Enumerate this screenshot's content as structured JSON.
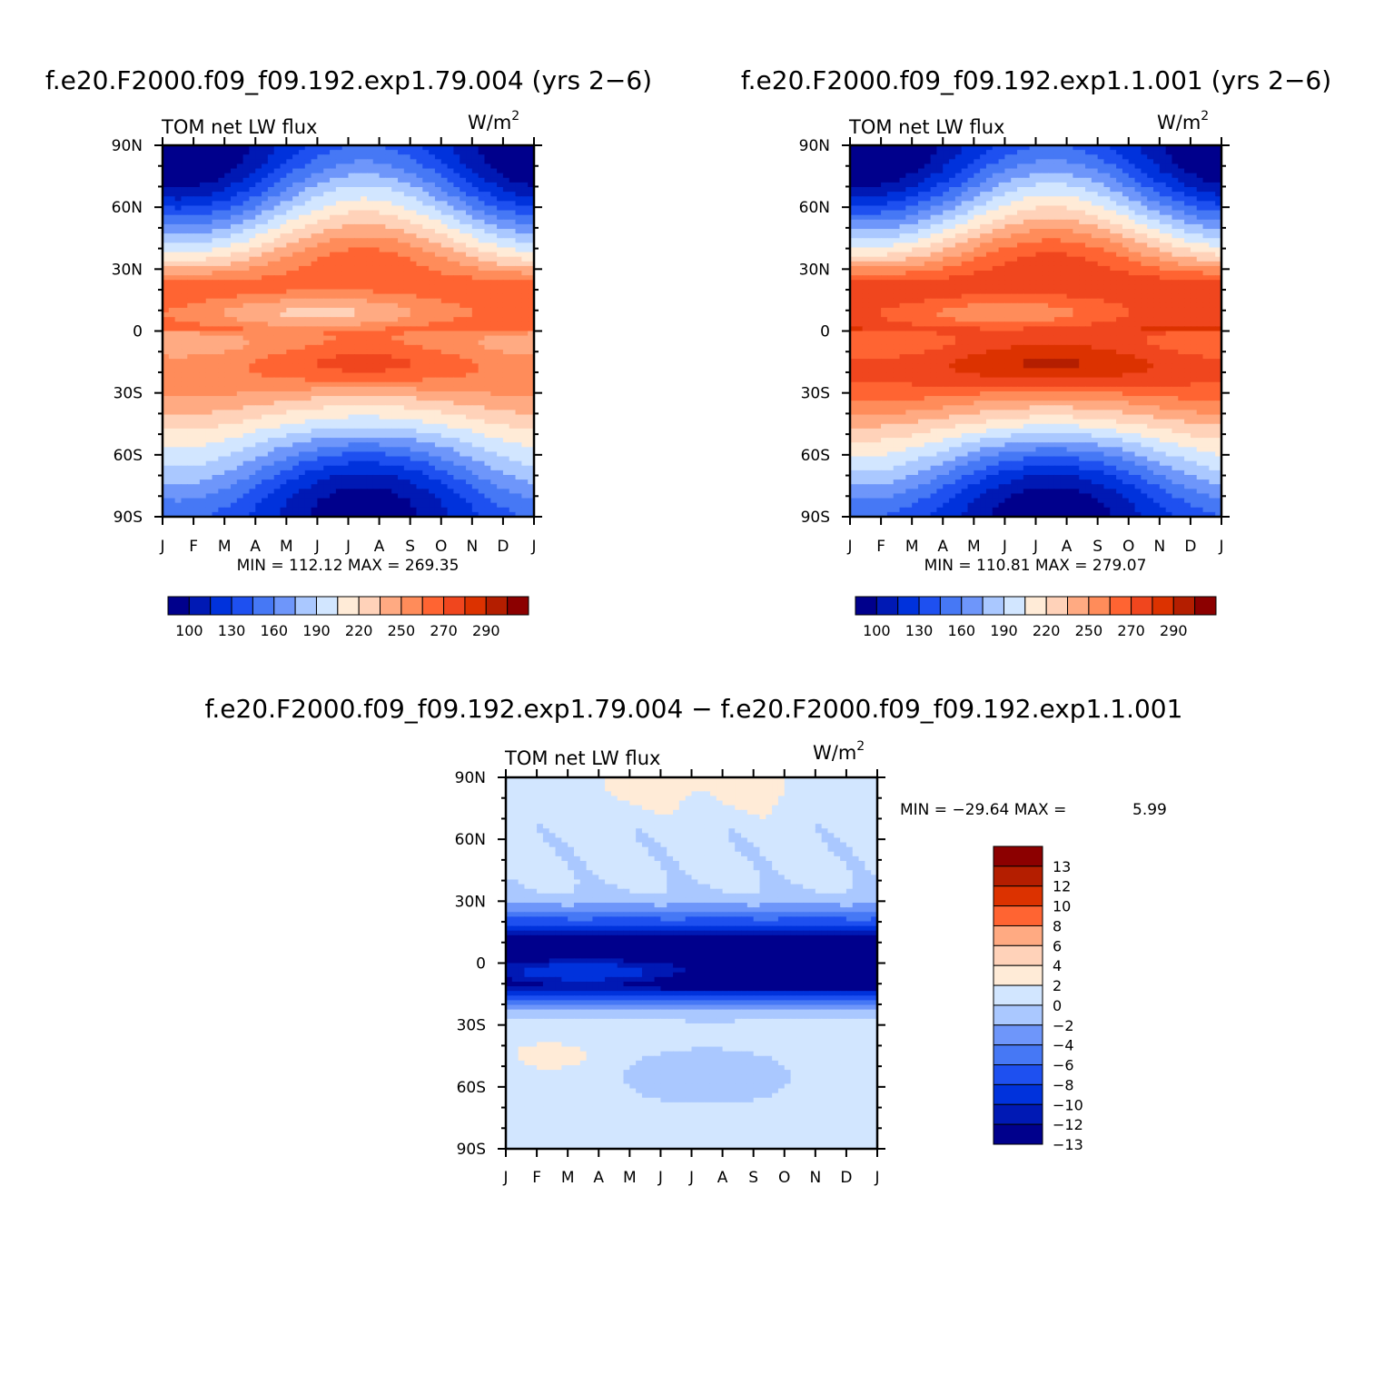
{
  "colors": {
    "main_scale": [
      "#00008c",
      "#0019b4",
      "#0032dc",
      "#1e50f0",
      "#4678f5",
      "#6e96fa",
      "#aac8ff",
      "#d2e6ff",
      "#ffebd7",
      "#ffd2b9",
      "#ffaa82",
      "#ff8c5a",
      "#ff6432",
      "#f0461e",
      "#dc3200",
      "#b41e00",
      "#8c0000"
    ],
    "diff_scale": [
      "#00008c",
      "#0019b4",
      "#0032dc",
      "#1e50f0",
      "#4678f5",
      "#6e96fa",
      "#aac8ff",
      "#d2e6ff",
      "#ffebd7",
      "#ffd2b9",
      "#ffaa82",
      "#ff6432",
      "#dc3200",
      "#b41e00",
      "#8c0000"
    ]
  },
  "chart_data": [
    {
      "type": "heatmap",
      "id": "panel1",
      "title": "f.e20.F2000.f09_f09.192.exp1.79.004 (yrs 2−6)",
      "subtitle_left": "TOM net LW flux",
      "units": "W/m",
      "units_sup": "2",
      "x_ticks": [
        "J",
        "F",
        "M",
        "A",
        "M",
        "J",
        "J",
        "A",
        "S",
        "O",
        "N",
        "D",
        "J"
      ],
      "y_ticks": [
        "90N",
        "60N",
        "30N",
        "0",
        "30S",
        "60S",
        "90S"
      ],
      "stats": "MIN = 112.12 MAX = 269.35",
      "colorbar_labels": [
        "100",
        "130",
        "160",
        "190",
        "220",
        "250",
        "270",
        "290"
      ],
      "scale_min": 90,
      "scale_max": 300,
      "model": {
        "eqn": 262,
        "eqs": 248,
        "pn": 112,
        "ps": 118,
        "itcz": 212,
        "tropBoost": 6
      }
    },
    {
      "type": "heatmap",
      "id": "panel2",
      "title": "f.e20.F2000.f09_f09.192.exp1.1.001 (yrs 2−6)",
      "subtitle_left": "TOM net LW flux",
      "units": "W/m",
      "units_sup": "2",
      "x_ticks": [
        "J",
        "F",
        "M",
        "A",
        "M",
        "J",
        "J",
        "A",
        "S",
        "O",
        "N",
        "D",
        "J"
      ],
      "y_ticks": [
        "90N",
        "60N",
        "30N",
        "0",
        "30S",
        "60S",
        "90S"
      ],
      "stats": "MIN = 110.81 MAX = 279.07",
      "colorbar_labels": [
        "100",
        "130",
        "160",
        "190",
        "220",
        "250",
        "270",
        "290"
      ],
      "scale_min": 90,
      "scale_max": 300,
      "model": {
        "eqn": 275,
        "eqs": 268,
        "pn": 112,
        "ps": 116,
        "itcz": 232,
        "tropBoost": 10
      }
    },
    {
      "type": "heatmap",
      "id": "panel3",
      "title": "f.e20.F2000.f09_f09.192.exp1.79.004 − f.e20.F2000.f09_f09.192.exp1.1.001",
      "subtitle_left": "TOM net LW flux",
      "units": "W/m",
      "units_sup": "2",
      "x_ticks": [
        "J",
        "F",
        "M",
        "A",
        "M",
        "J",
        "J",
        "A",
        "S",
        "O",
        "N",
        "D",
        "J"
      ],
      "y_ticks": [
        "90N",
        "60N",
        "30N",
        "0",
        "30S",
        "60S",
        "90S"
      ],
      "stats_min": "MIN = −29.64 MAX =",
      "stats_max": "5.99",
      "colorbar_labels": [
        "13",
        "12",
        "10",
        "8",
        "6",
        "4",
        "2",
        "0",
        "−2",
        "−4",
        "−6",
        "−8",
        "−10",
        "−12",
        "−13"
      ],
      "levels": [
        -13,
        -12,
        -10,
        -8,
        -6,
        -4,
        -2,
        0,
        2,
        4,
        6,
        8,
        10,
        12,
        13
      ]
    }
  ]
}
